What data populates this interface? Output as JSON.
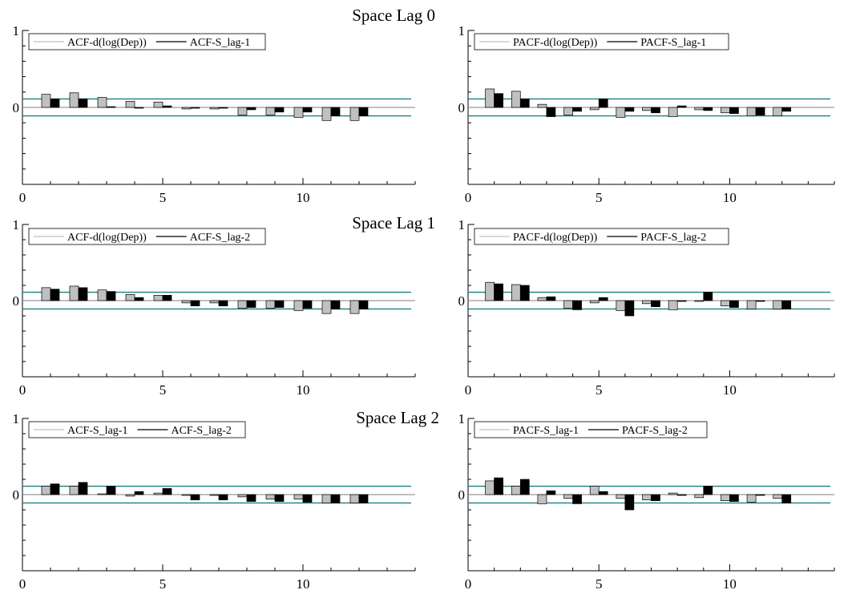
{
  "chart_data": [
    {
      "type": "bar",
      "title": "Space Lag 0",
      "xlabel": "",
      "ylabel": "",
      "xlim": [
        0,
        14
      ],
      "ylim": [
        -1,
        1
      ],
      "xticks": [
        "0",
        "5",
        "10"
      ],
      "yticks": [
        "1",
        "0"
      ],
      "x": [
        1,
        2,
        3,
        4,
        5,
        6,
        7,
        8,
        9,
        10,
        11,
        12
      ],
      "series": [
        {
          "name": "ACF-d(log(Dep))",
          "color": "#c0c0c0",
          "values": [
            0.17,
            0.19,
            0.13,
            0.08,
            0.07,
            -0.02,
            -0.02,
            -0.1,
            -0.1,
            -0.13,
            -0.17,
            -0.17
          ]
        },
        {
          "name": "ACF-S_lag-1",
          "color": "#000000",
          "values": [
            0.11,
            0.11,
            0.01,
            -0.01,
            0.02,
            -0.01,
            -0.01,
            -0.03,
            -0.06,
            -0.06,
            -0.11,
            -0.11
          ]
        }
      ],
      "bands": [
        0.11,
        -0.11
      ],
      "band_color": "#1a8080",
      "legend_position": "top-left"
    },
    {
      "type": "bar",
      "title": "",
      "xlabel": "",
      "ylabel": "",
      "xlim": [
        0,
        14
      ],
      "ylim": [
        -1,
        1
      ],
      "xticks": [
        "0",
        "5",
        "10"
      ],
      "yticks": [
        "1",
        "0"
      ],
      "x": [
        1,
        2,
        3,
        4,
        5,
        6,
        7,
        8,
        9,
        10,
        11,
        12
      ],
      "series": [
        {
          "name": "PACF-d(log(Dep))",
          "color": "#c0c0c0",
          "values": [
            0.24,
            0.21,
            0.04,
            -0.1,
            -0.03,
            -0.13,
            -0.04,
            -0.12,
            -0.03,
            -0.07,
            -0.11,
            -0.11
          ]
        },
        {
          "name": "PACF-S_lag-1",
          "color": "#000000",
          "values": [
            0.18,
            0.11,
            -0.12,
            -0.05,
            0.11,
            -0.05,
            -0.07,
            0.02,
            -0.04,
            -0.08,
            -0.1,
            -0.05
          ]
        }
      ],
      "bands": [
        0.11,
        -0.11
      ],
      "band_color": "#1a8080",
      "legend_position": "top-left"
    },
    {
      "type": "bar",
      "title": "Space Lag 1",
      "xlabel": "",
      "ylabel": "",
      "xlim": [
        0,
        14
      ],
      "ylim": [
        -1,
        1
      ],
      "xticks": [
        "0",
        "5",
        "10"
      ],
      "yticks": [
        "1",
        "0"
      ],
      "x": [
        1,
        2,
        3,
        4,
        5,
        6,
        7,
        8,
        9,
        10,
        11,
        12
      ],
      "series": [
        {
          "name": "ACF-d(log(Dep))",
          "color": "#c0c0c0",
          "values": [
            0.17,
            0.19,
            0.14,
            0.08,
            0.07,
            -0.03,
            -0.03,
            -0.1,
            -0.1,
            -0.13,
            -0.17,
            -0.17
          ]
        },
        {
          "name": "ACF-S_lag-2",
          "color": "#000000",
          "values": [
            0.15,
            0.17,
            0.12,
            0.04,
            0.07,
            -0.07,
            -0.07,
            -0.09,
            -0.09,
            -0.1,
            -0.11,
            -0.11
          ]
        }
      ],
      "bands": [
        0.11,
        -0.11
      ],
      "band_color": "#1a8080",
      "legend_position": "top-left"
    },
    {
      "type": "bar",
      "title": "",
      "xlabel": "",
      "ylabel": "",
      "xlim": [
        0,
        14
      ],
      "ylim": [
        -1,
        1
      ],
      "xticks": [
        "0",
        "5",
        "10"
      ],
      "yticks": [
        "1",
        "0"
      ],
      "x": [
        1,
        2,
        3,
        4,
        5,
        6,
        7,
        8,
        9,
        10,
        11,
        12
      ],
      "series": [
        {
          "name": "PACF-d(log(Dep))",
          "color": "#c0c0c0",
          "values": [
            0.24,
            0.21,
            0.04,
            -0.1,
            -0.03,
            -0.13,
            -0.04,
            -0.12,
            -0.01,
            -0.07,
            -0.11,
            -0.11
          ]
        },
        {
          "name": "PACF-S_lag-2",
          "color": "#000000",
          "values": [
            0.22,
            0.2,
            0.05,
            -0.12,
            0.04,
            -0.2,
            -0.08,
            -0.01,
            0.11,
            -0.09,
            -0.01,
            -0.11
          ]
        }
      ],
      "bands": [
        0.11,
        -0.11
      ],
      "band_color": "#1a8080",
      "legend_position": "top-left"
    },
    {
      "type": "bar",
      "title": "Space Lag 2",
      "xlabel": "",
      "ylabel": "",
      "xlim": [
        0,
        14
      ],
      "ylim": [
        -1,
        1
      ],
      "xticks": [
        "0",
        "5",
        "10"
      ],
      "yticks": [
        "1",
        "0"
      ],
      "x": [
        1,
        2,
        3,
        4,
        5,
        6,
        7,
        8,
        9,
        10,
        11,
        12
      ],
      "series": [
        {
          "name": "ACF-S_lag-1",
          "color": "#c0c0c0",
          "values": [
            0.11,
            0.11,
            0.01,
            -0.02,
            0.02,
            -0.01,
            -0.01,
            -0.03,
            -0.06,
            -0.06,
            -0.11,
            -0.11
          ]
        },
        {
          "name": "ACF-S_lag-2",
          "color": "#000000",
          "values": [
            0.14,
            0.16,
            0.11,
            0.04,
            0.08,
            -0.07,
            -0.07,
            -0.09,
            -0.09,
            -0.1,
            -0.11,
            -0.11
          ]
        }
      ],
      "bands": [
        0.11,
        -0.11
      ],
      "band_color": "#1a8080",
      "legend_position": "top-left"
    },
    {
      "type": "bar",
      "title": "",
      "xlabel": "",
      "ylabel": "",
      "xlim": [
        0,
        14
      ],
      "ylim": [
        -1,
        1
      ],
      "xticks": [
        "0",
        "5",
        "10"
      ],
      "yticks": [
        "1",
        "0"
      ],
      "x": [
        1,
        2,
        3,
        4,
        5,
        6,
        7,
        8,
        9,
        10,
        11,
        12
      ],
      "series": [
        {
          "name": "PACF-S_lag-1",
          "color": "#c0c0c0",
          "values": [
            0.18,
            0.11,
            -0.12,
            -0.05,
            0.11,
            -0.05,
            -0.07,
            0.02,
            -0.04,
            -0.08,
            -0.1,
            -0.05
          ]
        },
        {
          "name": "PACF-S_lag-2",
          "color": "#000000",
          "values": [
            0.22,
            0.2,
            0.05,
            -0.12,
            0.04,
            -0.2,
            -0.08,
            -0.01,
            0.11,
            -0.09,
            -0.01,
            -0.11
          ]
        }
      ],
      "bands": [
        0.11,
        -0.11
      ],
      "band_color": "#1a8080",
      "legend_position": "top-left"
    }
  ]
}
